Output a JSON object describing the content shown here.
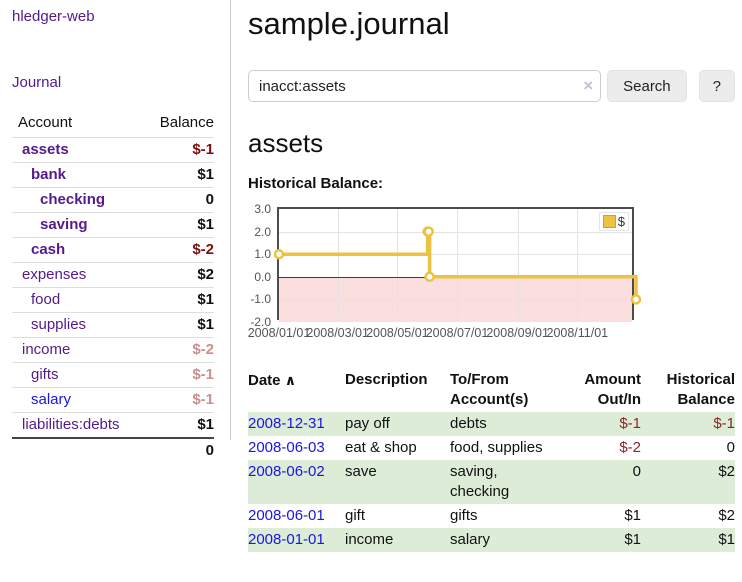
{
  "app": {
    "title": "hledger-web"
  },
  "sidebar": {
    "journal_link": "Journal",
    "table": {
      "account_header": "Account",
      "balance_header": "Balance"
    },
    "accounts": [
      {
        "name": "assets",
        "balance": "$-1"
      },
      {
        "name": "bank",
        "balance": "$1"
      },
      {
        "name": "checking",
        "balance": "0"
      },
      {
        "name": "saving",
        "balance": "$1"
      },
      {
        "name": "cash",
        "balance": "$-2"
      },
      {
        "name": "expenses",
        "balance": "$2"
      },
      {
        "name": "food",
        "balance": "$1"
      },
      {
        "name": "supplies",
        "balance": "$1"
      },
      {
        "name": "income",
        "balance": "$-2"
      },
      {
        "name": "gifts",
        "balance": "$-1"
      },
      {
        "name": "salary",
        "balance": "$-1"
      },
      {
        "name": "liabilities:debts",
        "balance": "$1"
      }
    ],
    "total": "0"
  },
  "header": {
    "title": "sample.journal"
  },
  "search": {
    "value": "inacct:assets",
    "clear_icon": "×",
    "button_label": "Search",
    "help_label": "?"
  },
  "account_page": {
    "title": "assets",
    "chart_label": "Historical Balance:"
  },
  "chart_data": {
    "type": "line",
    "step": true,
    "title": "Historical Balance",
    "series": [
      {
        "name": "$",
        "points": [
          [
            "2008-01-01",
            1
          ],
          [
            "2008-06-01",
            2
          ],
          [
            "2008-06-02",
            2
          ],
          [
            "2008-06-03",
            0
          ],
          [
            "2008-12-31",
            -1
          ]
        ]
      }
    ],
    "x_range": [
      "2008-01-01",
      "2008-12-31"
    ],
    "ylim": [
      -2,
      3
    ],
    "yticks": [
      "3.0",
      "2.0",
      "1.0",
      "0.0",
      "-1.0",
      "-2.0"
    ],
    "xticks": [
      "2008/01/01",
      "2008/03/01",
      "2008/05/01",
      "2008/07/01",
      "2008/09/01",
      "2008/11/01"
    ],
    "legend": {
      "label": "$",
      "position": "top-right"
    },
    "grid": true,
    "colors": {
      "line": "#EDC240",
      "negative_region": "#fbdede",
      "zero_line": "#8b1a1a",
      "grid": "#e3e3e3"
    }
  },
  "register": {
    "headers": {
      "date": "Date",
      "sort_icon": "∧",
      "description": "Description",
      "account": "To/From Account(s)",
      "amount": "Amount Out/In",
      "balance": "Historical Balance"
    },
    "rows": [
      {
        "date": "2008-12-31",
        "description": "pay off",
        "account": "debts",
        "amount": "$-1",
        "balance": "$-1"
      },
      {
        "date": "2008-06-03",
        "description": "eat & shop",
        "account": "food, supplies",
        "amount": "$-2",
        "balance": "0"
      },
      {
        "date": "2008-06-02",
        "description": "save",
        "account": "saving, checking",
        "amount": "0",
        "balance": "$2"
      },
      {
        "date": "2008-06-01",
        "description": "gift",
        "account": "gifts",
        "amount": "$1",
        "balance": "$2"
      },
      {
        "date": "2008-01-01",
        "description": "income",
        "account": "salary",
        "amount": "$1",
        "balance": "$1"
      }
    ]
  },
  "colors": {
    "link_purple": "#551a8b",
    "link_blue": "#1a16e0",
    "negative_strong": "#7a0f0f",
    "negative_faded": "#c9908e",
    "negative": "#8b2626",
    "row_green": "#dcecd7",
    "chart_line": "#EDC240"
  }
}
